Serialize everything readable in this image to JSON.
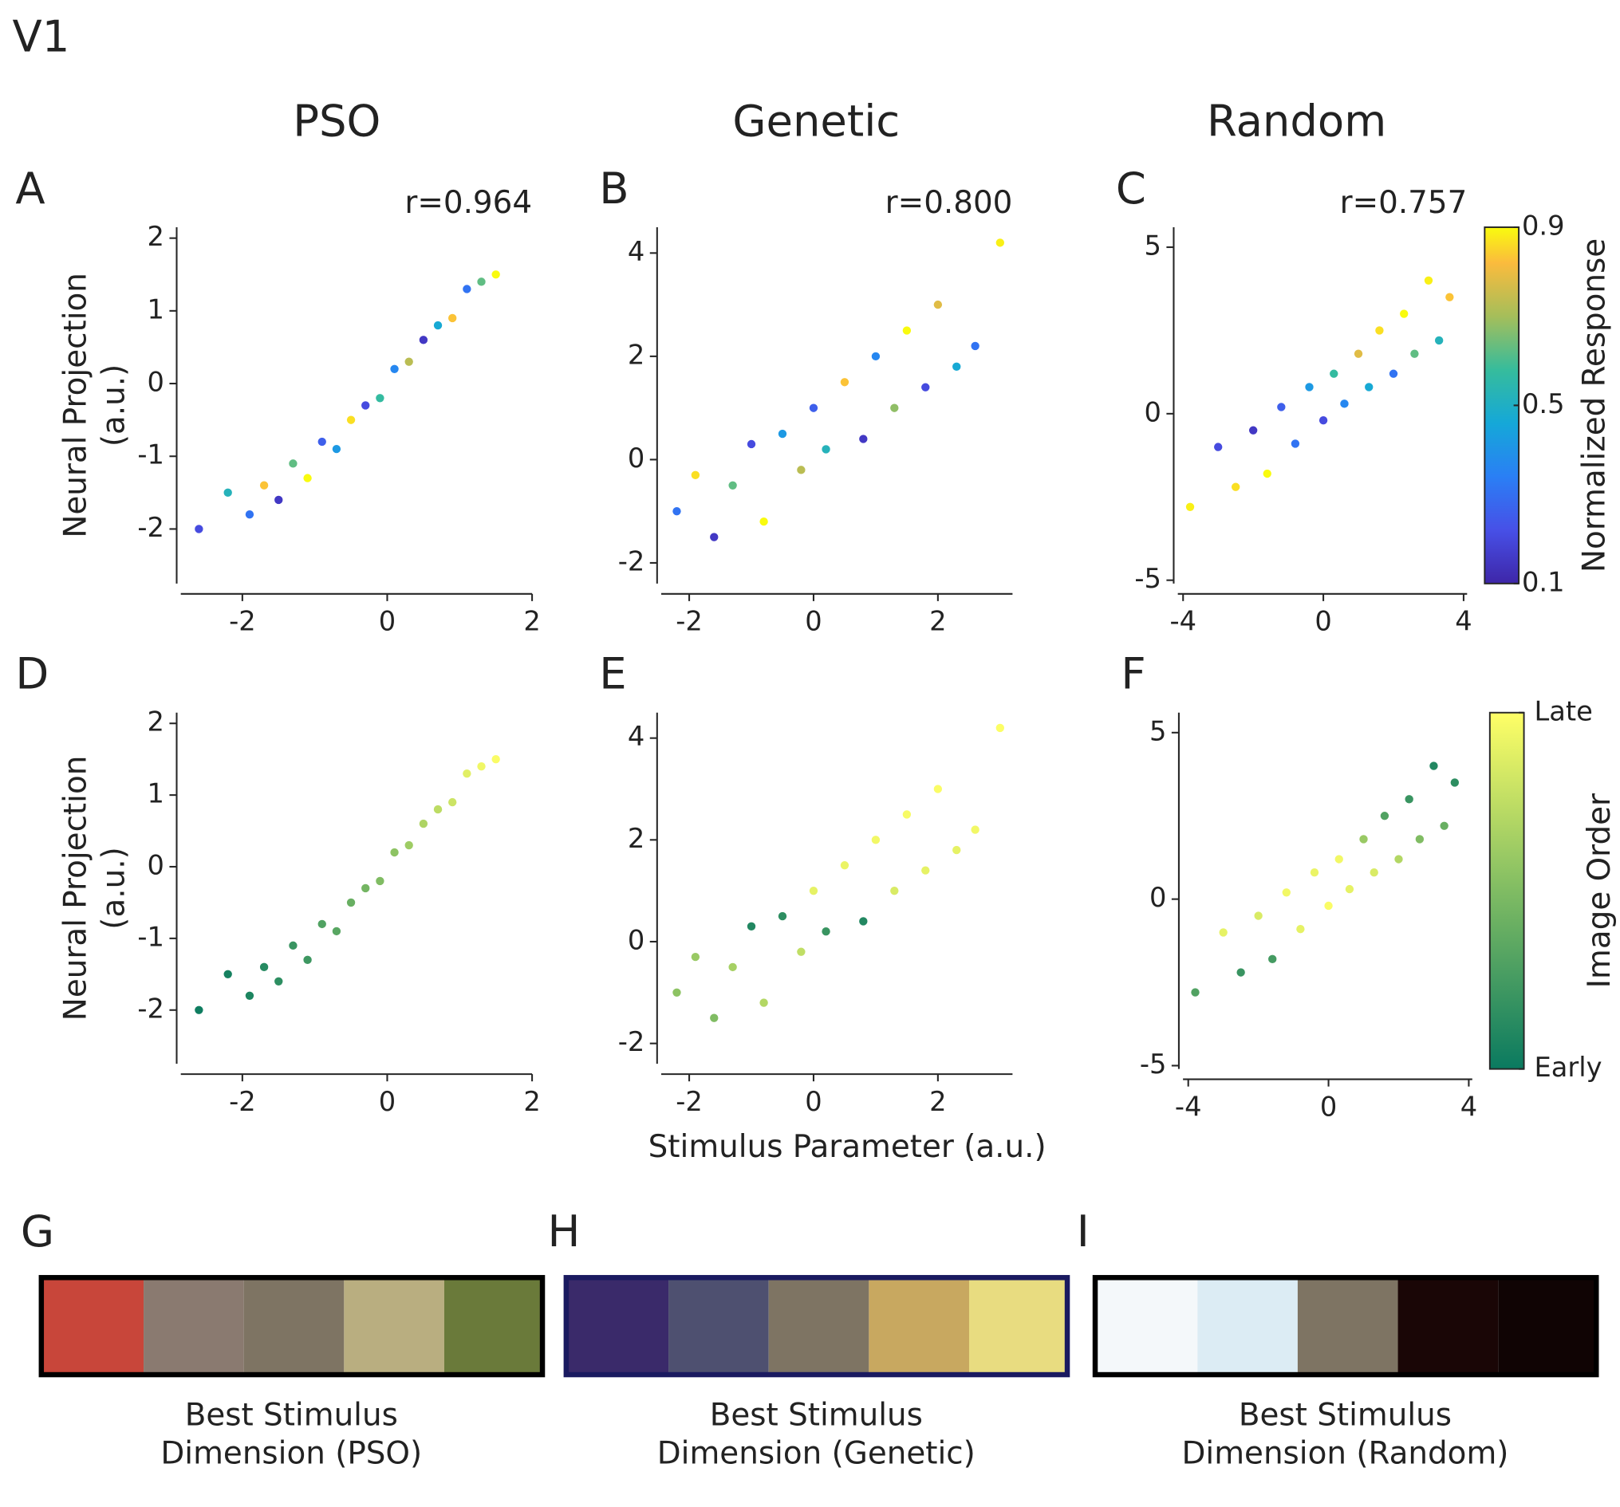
{
  "title": "V1",
  "column_titles": [
    "PSO",
    "Genetic",
    "Random"
  ],
  "chart_data": [
    {
      "type": "scatter",
      "panel_label": "A",
      "annotation": "r=0.964",
      "ylabel": [
        "Neural Projection",
        "(a.u.)"
      ],
      "x": [
        -2.6,
        -2.2,
        -1.9,
        -1.7,
        -1.5,
        -1.3,
        -1.1,
        -0.9,
        -0.7,
        -0.5,
        -0.3,
        -0.1,
        0.1,
        0.3,
        0.5,
        0.7,
        0.9,
        1.1,
        1.3,
        1.5
      ],
      "values": [
        -2.0,
        -1.5,
        -1.8,
        -1.4,
        -1.6,
        -1.1,
        -1.3,
        -0.8,
        -0.9,
        -0.5,
        -0.3,
        -0.2,
        0.2,
        0.3,
        0.6,
        0.8,
        0.9,
        1.3,
        1.4,
        1.5
      ],
      "color_values": [
        0.2,
        0.5,
        0.3,
        0.8,
        0.15,
        0.6,
        0.9,
        0.25,
        0.4,
        0.85,
        0.2,
        0.55,
        0.35,
        0.7,
        0.15,
        0.45,
        0.8,
        0.3,
        0.6,
        0.9
      ],
      "colormap": "parula",
      "clim": [
        0.1,
        0.9
      ],
      "xlim": [
        -2.85,
        2
      ],
      "ylim": [
        -2.75,
        2.15
      ],
      "xticks": [
        -2,
        0,
        2
      ],
      "yticks": [
        -2,
        -1,
        0,
        1,
        2
      ]
    },
    {
      "type": "scatter",
      "panel_label": "B",
      "annotation": "r=0.800",
      "x": [
        -2.2,
        -1.9,
        -1.6,
        -1.3,
        -1.0,
        -0.8,
        -0.5,
        -0.2,
        0.0,
        0.2,
        0.5,
        0.8,
        1.0,
        1.3,
        1.5,
        1.8,
        2.0,
        2.3,
        2.6,
        3.0
      ],
      "values": [
        -1.0,
        -0.3,
        -1.5,
        -0.5,
        0.3,
        -1.2,
        0.5,
        -0.2,
        1.0,
        0.2,
        1.5,
        0.4,
        2.0,
        1.0,
        2.5,
        1.4,
        3.0,
        1.8,
        2.2,
        4.2
      ],
      "color_values": [
        0.3,
        0.85,
        0.15,
        0.6,
        0.2,
        0.9,
        0.4,
        0.7,
        0.25,
        0.5,
        0.8,
        0.15,
        0.35,
        0.65,
        0.9,
        0.2,
        0.75,
        0.45,
        0.3,
        0.88
      ],
      "colormap": "parula",
      "clim": [
        0.1,
        0.9
      ],
      "xlim": [
        -2.45,
        3.2
      ],
      "ylim": [
        -2.4,
        4.5
      ],
      "xticks": [
        -2,
        0,
        2
      ],
      "yticks": [
        -2,
        0,
        2,
        4
      ]
    },
    {
      "type": "scatter",
      "panel_label": "C",
      "annotation": "r=0.757",
      "x": [
        -3.8,
        -3.0,
        -2.5,
        -2.0,
        -1.6,
        -1.2,
        -0.8,
        -0.4,
        0.0,
        0.3,
        0.6,
        1.0,
        1.3,
        1.6,
        2.0,
        2.3,
        2.6,
        3.0,
        3.3,
        3.6
      ],
      "values": [
        -2.8,
        -1.0,
        -2.2,
        -0.5,
        -1.8,
        0.2,
        -0.9,
        0.8,
        -0.2,
        1.2,
        0.3,
        1.8,
        0.8,
        2.5,
        1.2,
        3.0,
        1.8,
        4.0,
        2.2,
        3.5
      ],
      "color_values": [
        0.88,
        0.2,
        0.85,
        0.15,
        0.9,
        0.25,
        0.3,
        0.4,
        0.2,
        0.55,
        0.35,
        0.75,
        0.45,
        0.85,
        0.3,
        0.9,
        0.6,
        0.88,
        0.5,
        0.8
      ],
      "colormap": "parula",
      "clim": [
        0.1,
        0.9
      ],
      "xlim": [
        -4.15,
        4.1
      ],
      "ylim": [
        -5.1,
        5.6
      ],
      "xticks": [
        -4,
        0,
        4
      ],
      "yticks": [
        -5,
        0,
        5
      ],
      "colorbar": {
        "label": "Normalized Response",
        "ticks": [
          0.1,
          0.5,
          0.9
        ]
      }
    },
    {
      "type": "scatter",
      "panel_label": "D",
      "ylabel": [
        "Neural Projection",
        "(a.u.)"
      ],
      "x": [
        -2.6,
        -2.2,
        -1.9,
        -1.7,
        -1.5,
        -1.3,
        -1.1,
        -0.9,
        -0.7,
        -0.5,
        -0.3,
        -0.1,
        0.1,
        0.3,
        0.5,
        0.7,
        0.9,
        1.1,
        1.3,
        1.5
      ],
      "values": [
        -2.0,
        -1.5,
        -1.8,
        -1.4,
        -1.6,
        -1.1,
        -1.3,
        -0.8,
        -0.9,
        -0.5,
        -0.3,
        -0.2,
        0.2,
        0.3,
        0.6,
        0.8,
        0.9,
        1.3,
        1.4,
        1.5
      ],
      "color_values": [
        0.02,
        0.05,
        0.08,
        0.12,
        0.15,
        0.2,
        0.22,
        0.3,
        0.33,
        0.4,
        0.45,
        0.5,
        0.55,
        0.62,
        0.68,
        0.74,
        0.8,
        0.88,
        0.94,
        0.98
      ],
      "colormap": "summer",
      "clim": [
        0,
        1
      ],
      "xlim": [
        -2.85,
        2
      ],
      "ylim": [
        -2.75,
        2.15
      ],
      "xticks": [
        -2,
        0,
        2
      ],
      "yticks": [
        -2,
        -1,
        0,
        1,
        2
      ]
    },
    {
      "type": "scatter",
      "panel_label": "E",
      "xlabel": "Stimulus Parameter (a.u.)",
      "x": [
        -2.2,
        -1.9,
        -1.6,
        -1.3,
        -1.0,
        -0.8,
        -0.5,
        -0.2,
        0.0,
        0.2,
        0.5,
        0.8,
        1.0,
        1.3,
        1.5,
        1.8,
        2.0,
        2.3,
        2.6,
        3.0
      ],
      "values": [
        -1.0,
        -0.3,
        -1.5,
        -0.5,
        0.3,
        -1.2,
        0.5,
        -0.2,
        1.0,
        0.2,
        1.5,
        0.4,
        2.0,
        1.0,
        2.5,
        1.4,
        3.0,
        1.8,
        2.2,
        4.2
      ],
      "color_values": [
        0.55,
        0.6,
        0.5,
        0.65,
        0.1,
        0.7,
        0.15,
        0.75,
        0.9,
        0.2,
        0.92,
        0.1,
        0.95,
        0.85,
        0.97,
        0.9,
        0.98,
        0.9,
        0.95,
        0.99
      ],
      "colormap": "summer",
      "clim": [
        0,
        1
      ],
      "xlim": [
        -2.45,
        3.2
      ],
      "ylim": [
        -2.4,
        4.5
      ],
      "xticks": [
        -2,
        0,
        2
      ],
      "yticks": [
        -2,
        0,
        2,
        4
      ]
    },
    {
      "type": "scatter",
      "panel_label": "F",
      "x": [
        -3.8,
        -3.0,
        -2.5,
        -2.0,
        -1.6,
        -1.2,
        -0.8,
        -0.4,
        0.0,
        0.3,
        0.6,
        1.0,
        1.3,
        1.6,
        2.0,
        2.3,
        2.6,
        3.0,
        3.3,
        3.6
      ],
      "values": [
        -2.8,
        -1.0,
        -2.2,
        -0.5,
        -1.8,
        0.2,
        -0.9,
        0.8,
        -0.2,
        1.2,
        0.3,
        1.8,
        0.8,
        2.5,
        1.2,
        3.0,
        1.8,
        4.0,
        2.2,
        3.5
      ],
      "color_values": [
        0.3,
        0.9,
        0.2,
        0.85,
        0.25,
        0.95,
        0.9,
        0.92,
        0.98,
        0.95,
        0.9,
        0.6,
        0.85,
        0.3,
        0.7,
        0.2,
        0.5,
        0.1,
        0.4,
        0.15
      ],
      "colormap": "summer",
      "clim": [
        0,
        1
      ],
      "xlim": [
        -4.15,
        4.1
      ],
      "ylim": [
        -5.1,
        5.6
      ],
      "xticks": [
        -4,
        0,
        4
      ],
      "yticks": [
        -5,
        0,
        5
      ],
      "colorbar": {
        "label": "Image Order",
        "ticks": [
          {
            "value": 0,
            "label": "Early"
          },
          {
            "value": 1,
            "label": "Late"
          }
        ]
      }
    }
  ],
  "stimulus_panels": [
    {
      "label": "G",
      "caption": [
        "Best Stimulus",
        "Dimension (PSO)"
      ]
    },
    {
      "label": "H",
      "caption": [
        "Best Stimulus",
        "Dimension (Genetic)"
      ]
    },
    {
      "label": "I",
      "caption": [
        "Best Stimulus",
        "Dimension (Random)"
      ]
    }
  ]
}
